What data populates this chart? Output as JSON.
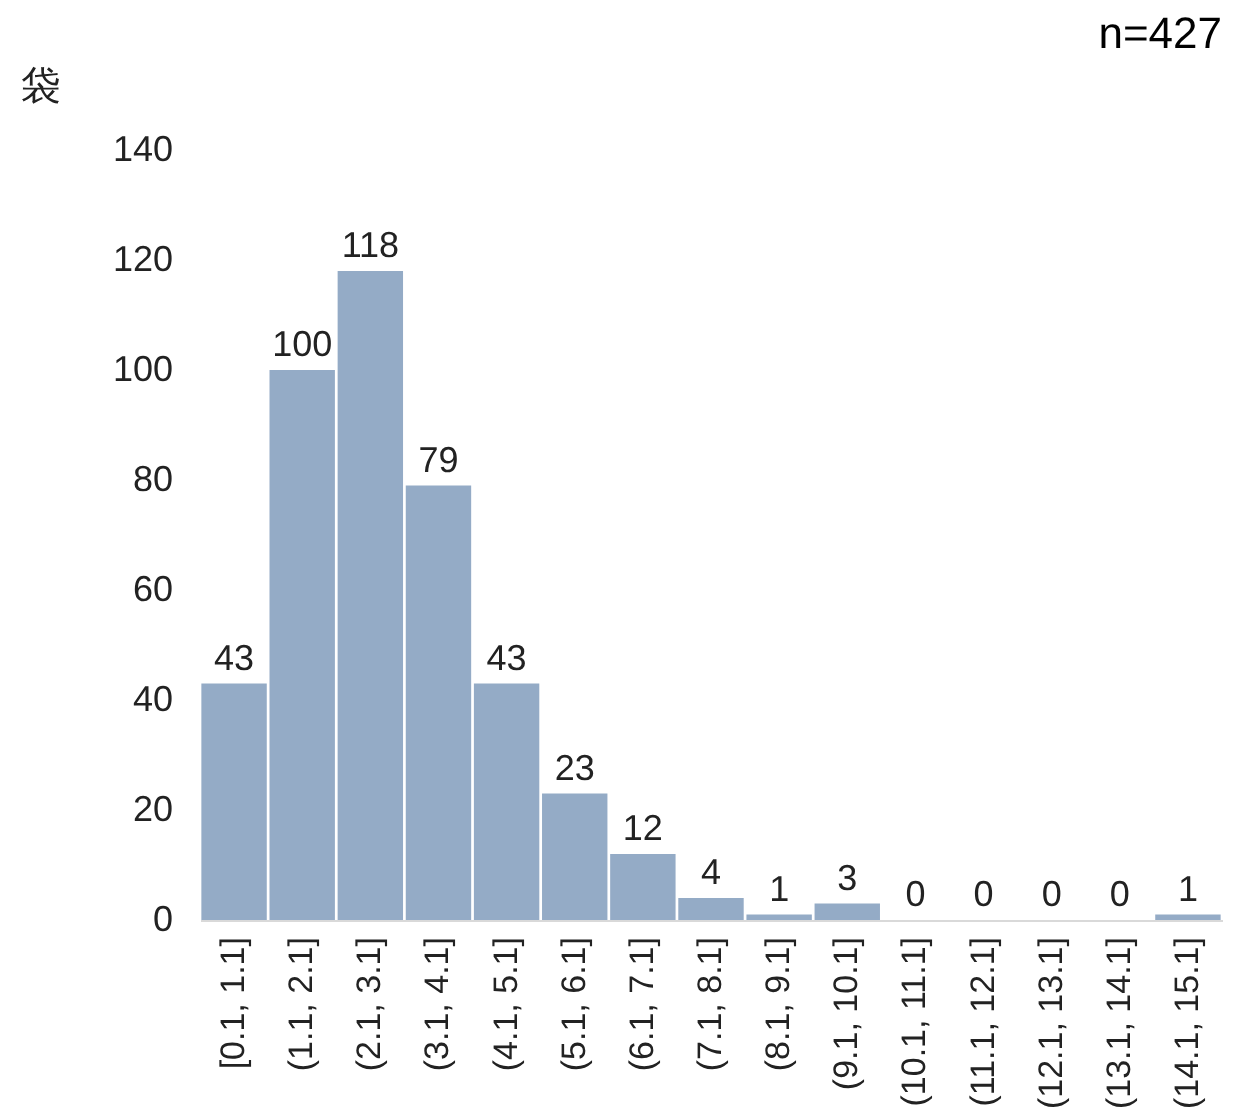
{
  "chart_data": {
    "type": "bar",
    "ylabel": "袋",
    "annotations": [
      "n=427"
    ],
    "categories": [
      "[0.1, 1.1]",
      "(1.1, 2.1]",
      "(2.1, 3.1]",
      "(3.1, 4.1]",
      "(4.1, 5.1]",
      "(5.1, 6.1]",
      "(6.1, 7.1]",
      "(7.1, 8.1]",
      "(8.1, 9.1]",
      "(9.1, 10.1]",
      "(10.1, 11.1]",
      "(11.1, 12.1]",
      "(12.1, 13.1]",
      "(13.1, 14.1]",
      "(14.1, 15.1]"
    ],
    "values": [
      43,
      100,
      118,
      79,
      43,
      23,
      12,
      4,
      1,
      3,
      0,
      0,
      0,
      0,
      1
    ],
    "color": "#94abc6",
    "ylim": [
      0,
      140
    ],
    "yticks": [
      0,
      20,
      40,
      60,
      80,
      100,
      120,
      140
    ],
    "data_labels": true
  }
}
